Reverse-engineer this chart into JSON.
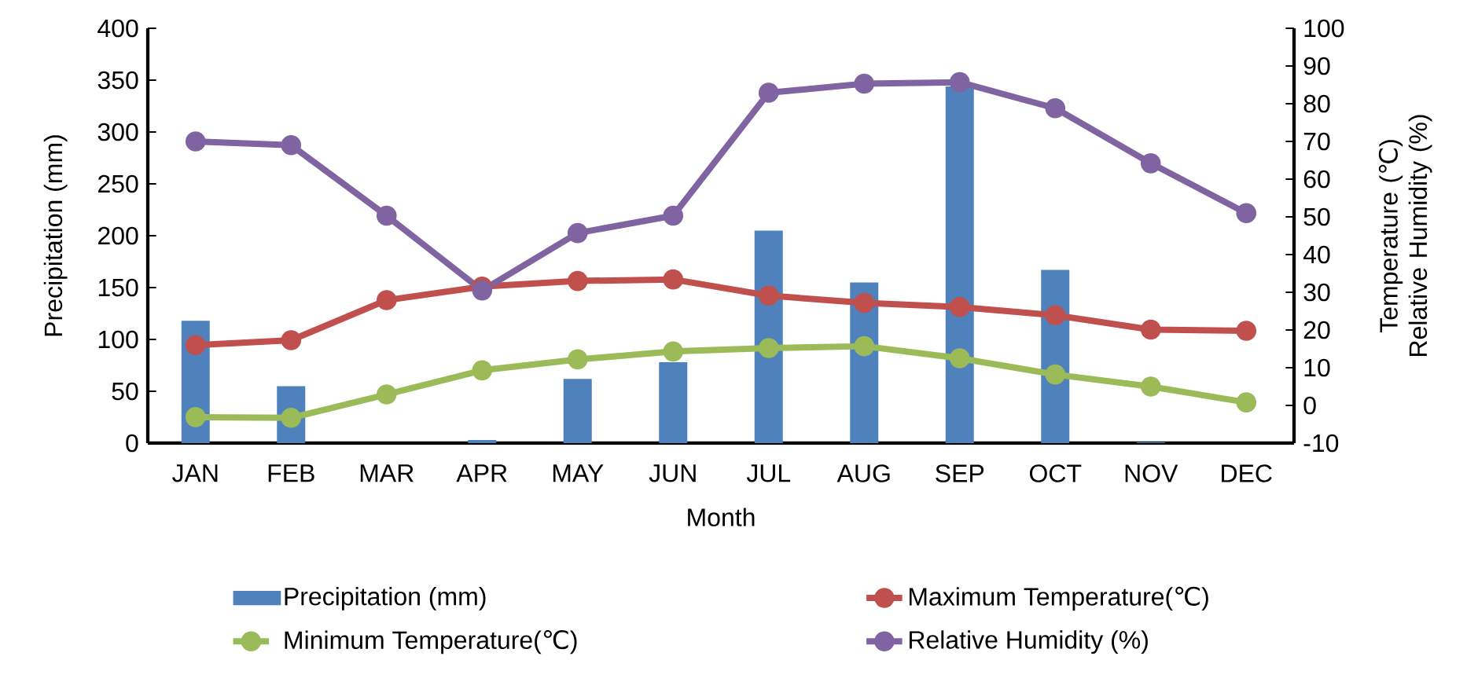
{
  "chart_data": {
    "type": "bar",
    "xlabel": "Month",
    "ylabel": "Precipitation (mm)",
    "y2label": "Temperature (℃) Relative Humidity (%)",
    "categories": [
      "JAN",
      "FEB",
      "MAR",
      "APR",
      "MAY",
      "JUN",
      "JUL",
      "AUG",
      "SEP",
      "OCT",
      "NOV",
      "DEC"
    ],
    "ylim": [
      0,
      400
    ],
    "yticks": [
      0,
      50,
      100,
      150,
      200,
      250,
      300,
      350,
      400
    ],
    "y2lim": [
      -10,
      100
    ],
    "y2ticks": [
      -10,
      0,
      10,
      20,
      30,
      40,
      50,
      60,
      70,
      80,
      90,
      100
    ],
    "legend": "bottom",
    "marker": "circle",
    "series": [
      {
        "name": "Precipitation (mm)",
        "axis": "y",
        "color": "#4f81bd",
        "values": [
          118,
          55,
          0,
          3,
          62,
          78,
          205,
          155,
          344,
          167,
          1,
          0
        ]
      },
      {
        "name": "Maximum Temperature(℃)",
        "type": "line",
        "axis": "y2",
        "color": "#c0504d",
        "values": [
          16,
          17.3,
          27.9,
          31.5,
          33,
          33.4,
          29.1,
          27.2,
          26.1,
          23.9,
          20.1,
          19.8
        ]
      },
      {
        "name": "Minimum Temperature(℃)",
        "type": "line",
        "axis": "y2",
        "color": "#9bbb59",
        "values": [
          -3.1,
          -3.3,
          2.9,
          9.3,
          12.2,
          14.3,
          15.2,
          15.7,
          12.5,
          8.2,
          5,
          0.8
        ]
      },
      {
        "name": "Relative Humidity (%)",
        "type": "line",
        "axis": "y2",
        "color": "#8064a2",
        "values": [
          70,
          69,
          50.3,
          30.5,
          45.7,
          50.3,
          82.9,
          85.3,
          85.7,
          78.8,
          64.2,
          51
        ]
      }
    ]
  }
}
